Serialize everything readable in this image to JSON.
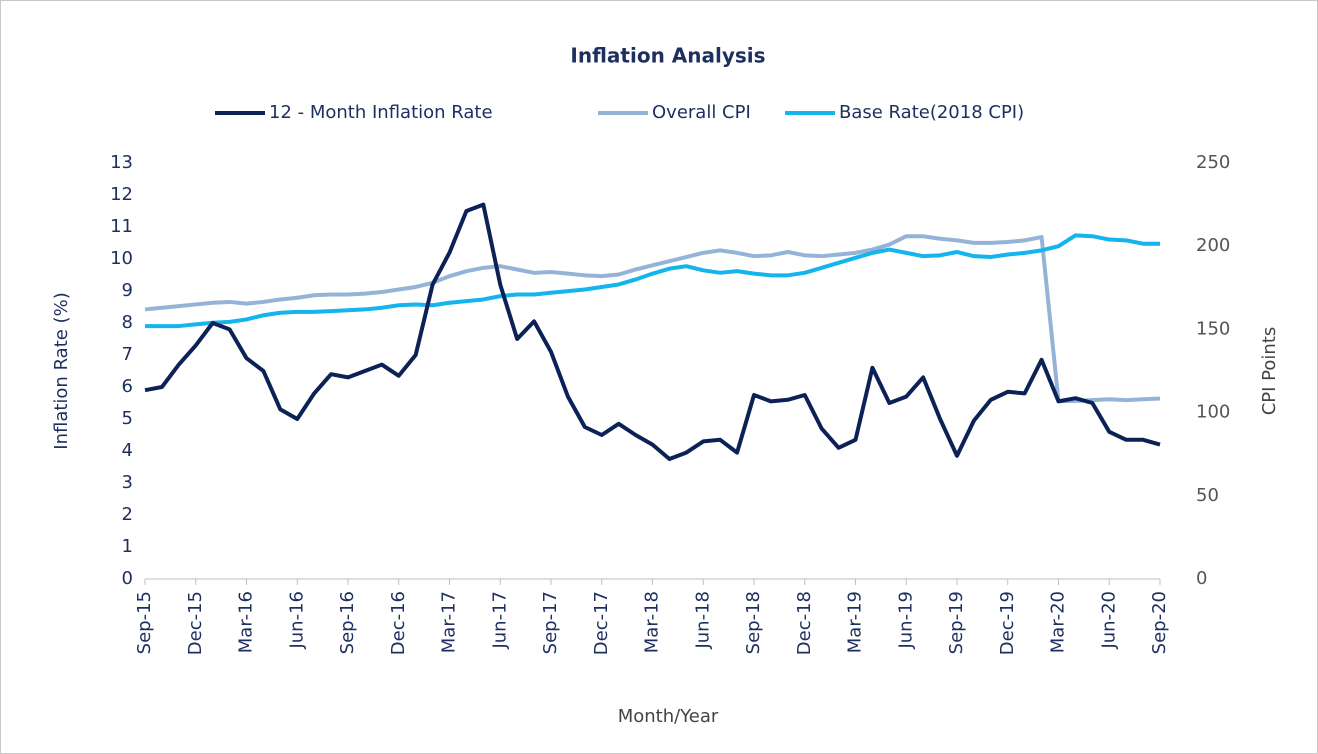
{
  "chart_data": {
    "type": "line",
    "title": "Inflation Analysis",
    "x_label": "Month/Year",
    "y_label": "Inflation Rate (%)",
    "y2_label": "CPI Points",
    "legend": "top",
    "grid": false,
    "categories": [
      "Sep-15",
      null,
      null,
      "Dec-15",
      null,
      null,
      "Mar-16",
      null,
      null,
      "Jun-16",
      null,
      null,
      "Sep-16",
      null,
      null,
      "Dec-16",
      null,
      null,
      "Mar-17",
      null,
      null,
      "Jun-17",
      null,
      null,
      "Sep-17",
      null,
      null,
      "Dec-17",
      null,
      null,
      "Mar-18",
      null,
      null,
      "Jun-18",
      null,
      null,
      "Sep-18",
      null,
      null,
      "Dec-18",
      null,
      null,
      "Mar-19",
      null,
      null,
      "Jun-19",
      null,
      null,
      "Sep-19",
      null,
      null,
      "Dec-19",
      null,
      null,
      "Mar-20",
      null,
      null,
      "Jun-20",
      null,
      null,
      "Sep-20"
    ],
    "ylim": [
      0,
      13
    ],
    "yticks": [
      0,
      1,
      2,
      3,
      4,
      5,
      6,
      7,
      8,
      9,
      10,
      11,
      12,
      13
    ],
    "y2lim": [
      0,
      250
    ],
    "y2ticks": [
      0,
      50,
      100,
      150,
      200,
      250
    ],
    "series": [
      {
        "name": "12 - Month Inflation Rate",
        "color": "#0c2257",
        "axis": "y",
        "values": [
          5.9,
          6.0,
          6.7,
          7.3,
          8.0,
          7.8,
          6.9,
          6.5,
          5.3,
          5.0,
          5.8,
          6.4,
          6.3,
          6.5,
          6.7,
          6.35,
          7.0,
          9.2,
          10.2,
          11.5,
          11.7,
          9.2,
          7.5,
          8.05,
          7.1,
          5.7,
          4.75,
          4.5,
          4.85,
          4.5,
          4.2,
          3.75,
          3.95,
          4.3,
          4.35,
          3.95,
          5.75,
          5.55,
          5.6,
          5.75,
          4.7,
          4.1,
          4.35,
          6.6,
          5.5,
          5.7,
          6.3,
          5.0,
          3.85,
          4.95,
          5.6,
          5.85,
          5.8,
          6.85,
          5.55,
          5.65,
          5.5,
          4.6,
          4.35,
          4.35,
          4.2
        ]
      },
      {
        "name": "Overall CPI",
        "color": "#95b3d7",
        "axis": "y2",
        "values": [
          162,
          163,
          164,
          165,
          166,
          166.5,
          165.5,
          166.5,
          168,
          169,
          170.5,
          171,
          171,
          171.5,
          172.5,
          174,
          175.5,
          178,
          182,
          185,
          187,
          188,
          186,
          184,
          184.5,
          183.5,
          182.5,
          182,
          183,
          186,
          188.5,
          191,
          193.5,
          196,
          197.5,
          196,
          194,
          194.5,
          196.5,
          194.5,
          194,
          195,
          196,
          198,
          201,
          206,
          206,
          204.5,
          203.5,
          202,
          202,
          202.5,
          203.5,
          205.5,
          107,
          107,
          107.5,
          108,
          107.5,
          108,
          108.5
        ]
      },
      {
        "name": "Base Rate(2018 CPI)",
        "color": "#14b4ec",
        "axis": "y2",
        "values": [
          152,
          152,
          152,
          153,
          154,
          154.5,
          156,
          158.5,
          160,
          160.5,
          160.5,
          161,
          161.5,
          162,
          163,
          164.5,
          165,
          164.5,
          166,
          167,
          168,
          170,
          171,
          171,
          172,
          173,
          174,
          175.5,
          177,
          180,
          183.5,
          186.5,
          188,
          185.5,
          184,
          185,
          183.5,
          182.5,
          182.5,
          184,
          187,
          190,
          193,
          196,
          198,
          196,
          194,
          194.5,
          196.5,
          194,
          193.5,
          195,
          196,
          197.5,
          200,
          206.5,
          206,
          204,
          203.5,
          201.5,
          201.5
        ]
      }
    ]
  }
}
